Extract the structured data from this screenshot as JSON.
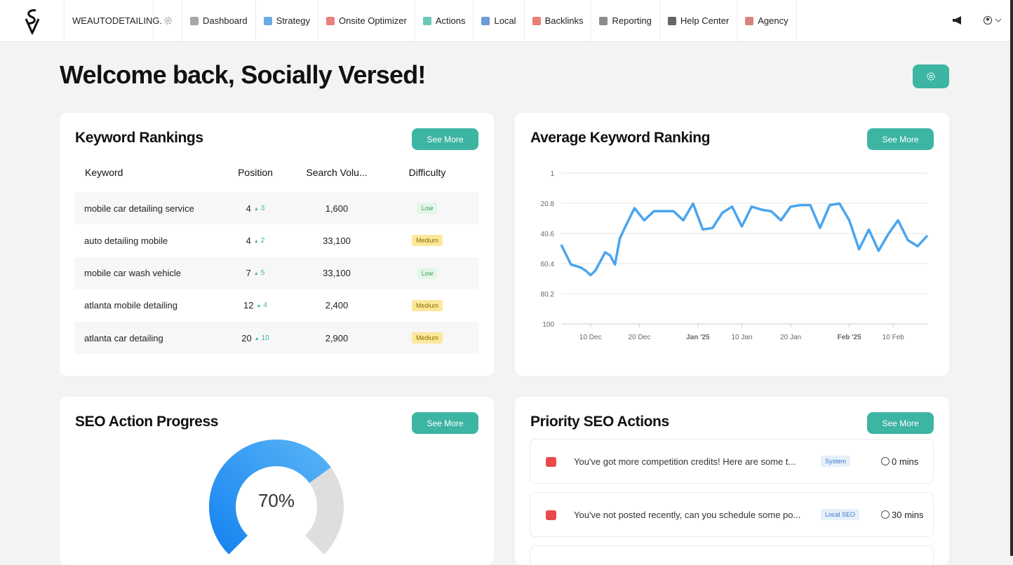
{
  "nav": {
    "account": "WEAUTODETAILING.",
    "items": [
      "Dashboard",
      "Strategy",
      "Onsite Optimizer",
      "Actions",
      "Local",
      "Backlinks",
      "Reporting",
      "Help Center",
      "Agency"
    ]
  },
  "header": {
    "title": "Welcome back, Socially Versed!"
  },
  "keyword_rankings": {
    "title": "Keyword Rankings",
    "button": "See More",
    "columns": [
      "Keyword",
      "Position",
      "Search Volu...",
      "Difficulty"
    ],
    "rows": [
      {
        "keyword": "mobile car detailing service",
        "position": "4",
        "change": "3",
        "volume": "1,600",
        "difficulty": "Low"
      },
      {
        "keyword": "auto detailing mobile",
        "position": "4",
        "change": "2",
        "volume": "33,100",
        "difficulty": "Medium"
      },
      {
        "keyword": "mobile car wash vehicle",
        "position": "7",
        "change": "5",
        "volume": "33,100",
        "difficulty": "Low"
      },
      {
        "keyword": "atlanta mobile detailing",
        "position": "12",
        "change": "4",
        "volume": "2,400",
        "difficulty": "Medium"
      },
      {
        "keyword": "atlanta car detailing",
        "position": "20",
        "change": "10",
        "volume": "2,900",
        "difficulty": "Medium"
      }
    ]
  },
  "average_ranking_card": {
    "button": "See More"
  },
  "chart_data": {
    "type": "line",
    "title": "Average Keyword Ranking",
    "x": [
      "2024-12-04",
      "2024-12-06",
      "2024-12-08",
      "2024-12-09",
      "2024-12-10",
      "2024-12-11",
      "2024-12-13",
      "2024-12-14",
      "2024-12-15",
      "2024-12-16",
      "2024-12-17",
      "2024-12-19",
      "2024-12-21",
      "2024-12-23",
      "2024-12-27",
      "2024-12-29",
      "2024-12-31",
      "2025-01-02",
      "2025-01-04",
      "2025-01-06",
      "2025-01-08",
      "2025-01-10",
      "2025-01-12",
      "2025-01-14",
      "2025-01-16",
      "2025-01-18",
      "2025-01-20",
      "2025-01-22",
      "2025-01-24",
      "2025-01-26",
      "2025-01-28",
      "2025-01-30",
      "2025-02-01",
      "2025-02-03",
      "2025-02-05",
      "2025-02-07",
      "2025-02-09",
      "2025-02-11",
      "2025-02-13",
      "2025-02-15",
      "2025-02-17"
    ],
    "series": [
      {
        "name": "Average ranking",
        "color": "#4aa5ef",
        "values": [
          48,
          61,
          63,
          65,
          68,
          65,
          53,
          55,
          61,
          44,
          37,
          24,
          32,
          26,
          26,
          32,
          21,
          38,
          37,
          27,
          23,
          36,
          23,
          25,
          26,
          32,
          23,
          22,
          22,
          37,
          22,
          21,
          32,
          51,
          38,
          52,
          41,
          32,
          45,
          49,
          42
        ]
      }
    ],
    "xlim": [
      "2024-12-04",
      "2025-02-17"
    ],
    "xticks": [
      {
        "value": "2024-12-10",
        "label": "10 Dec"
      },
      {
        "value": "2024-12-20",
        "label": "20 Dec"
      },
      {
        "value": "2025-01-01",
        "label": "Jan '25",
        "bold": true
      },
      {
        "value": "2025-01-10",
        "label": "10 Jan"
      },
      {
        "value": "2025-01-20",
        "label": "20 Jan"
      },
      {
        "value": "2025-02-01",
        "label": "Feb '25",
        "bold": true
      },
      {
        "value": "2025-02-10",
        "label": "10 Feb"
      }
    ],
    "ylim": [
      1,
      100
    ],
    "inverted": true,
    "yticks": [
      1,
      20.8,
      40.6,
      60.4,
      80.2,
      100
    ],
    "grid": true
  },
  "seo_action_progress": {
    "title": "SEO Action Progress",
    "button": "See More",
    "value": 70,
    "label": "70%"
  },
  "priority_actions": {
    "title": "Priority SEO Actions",
    "button": "See More",
    "items": [
      {
        "text": "You've got more competition credits! Here are some t...",
        "tag": "System",
        "time": "0 mins"
      },
      {
        "text": "You've not posted recently, can you schedule some po...",
        "tag": "Local SEO",
        "time": "30 mins"
      }
    ]
  }
}
